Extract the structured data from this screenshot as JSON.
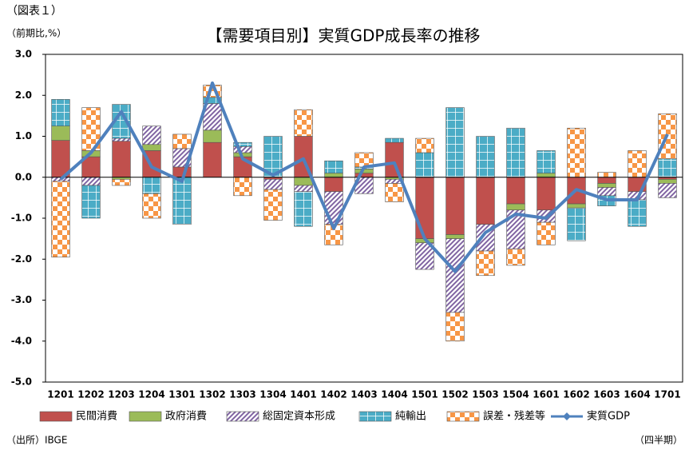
{
  "figure_label": "（図表１）",
  "source": "（出所）IBGE",
  "chart_data": {
    "type": "bar",
    "stacked": true,
    "title": "【需要項目別】実質GDP成長率の推移",
    "y_label": "（前期比,%）",
    "x_label": "（四半期）",
    "categories": [
      "1201",
      "1202",
      "1203",
      "1204",
      "1301",
      "1302",
      "1303",
      "1304",
      "1401",
      "1402",
      "1403",
      "1404",
      "1501",
      "1502",
      "1503",
      "1504",
      "1601",
      "1602",
      "1603",
      "1604",
      "1701"
    ],
    "ylim": [
      -5,
      3
    ],
    "yticks": [
      {
        "value": -5,
        "label": "-5.0"
      },
      {
        "value": -4,
        "label": "-4.0"
      },
      {
        "value": -3,
        "label": "-3.0"
      },
      {
        "value": -2,
        "label": "-2.0"
      },
      {
        "value": -1,
        "label": "-1.0"
      },
      {
        "value": 0,
        "label": "0.0"
      },
      {
        "value": 1,
        "label": "1.0"
      },
      {
        "value": 2,
        "label": "2.0"
      },
      {
        "value": 3,
        "label": "3.0"
      }
    ],
    "grid": false,
    "series": [
      {
        "name": "民間消費",
        "color": "#c0504d",
        "pattern": "solid",
        "values": [
          0.9,
          0.5,
          0.88,
          0.65,
          0.25,
          0.85,
          0.5,
          -0.05,
          1.0,
          -0.35,
          0.1,
          0.85,
          -1.5,
          -1.4,
          -1.15,
          -0.65,
          -0.8,
          -0.65,
          -0.15,
          -0.35,
          -0.05
        ]
      },
      {
        "name": "政府消費",
        "color": "#9bbb59",
        "pattern": "solid",
        "values": [
          0.35,
          0.15,
          -0.05,
          0.15,
          0,
          0.3,
          0.1,
          0,
          -0.2,
          0.1,
          0.1,
          -0.05,
          -0.1,
          -0.1,
          0,
          -0.15,
          0.1,
          -0.1,
          -0.1,
          0,
          -0.1
        ]
      },
      {
        "name": "総固定資本形成",
        "color": "#8064a2",
        "pattern": "hatch",
        "values": [
          -0.1,
          -0.2,
          0.07,
          0.45,
          0.45,
          0.65,
          0.15,
          -0.25,
          -0.15,
          -0.8,
          -0.4,
          -0.1,
          -0.65,
          -1.8,
          -0.65,
          -0.95,
          -0.3,
          0,
          -0.2,
          -0.2,
          -0.35
        ]
      },
      {
        "name": "純輸出",
        "color": "#4bacc6",
        "pattern": "grid",
        "values": [
          0.65,
          -0.8,
          0.83,
          -0.4,
          -1.15,
          0.15,
          0.1,
          1.0,
          -0.85,
          0.3,
          0.05,
          0.1,
          0.6,
          1.7,
          1.0,
          1.2,
          0.55,
          -0.8,
          -0.25,
          -0.65,
          0.45
        ]
      },
      {
        "name": "誤差・残差等",
        "color": "#f79646",
        "pattern": "check",
        "values": [
          -1.85,
          1.05,
          -0.15,
          -0.6,
          0.35,
          0.3,
          -0.45,
          -0.75,
          0.65,
          -0.5,
          0.35,
          -0.45,
          0.35,
          -0.7,
          -0.6,
          -0.4,
          -0.55,
          1.2,
          0.12,
          0.65,
          1.1
        ]
      },
      {
        "name": "実質GDP",
        "color": "#4f81bd",
        "type": "line",
        "values": [
          -0.05,
          0.6,
          1.6,
          0.25,
          -0.1,
          2.3,
          0.45,
          0.05,
          0.45,
          -1.25,
          0.25,
          0.35,
          -1.5,
          -2.3,
          -1.35,
          -0.9,
          -1.0,
          -0.3,
          -0.55,
          -0.55,
          1.05
        ]
      }
    ]
  }
}
